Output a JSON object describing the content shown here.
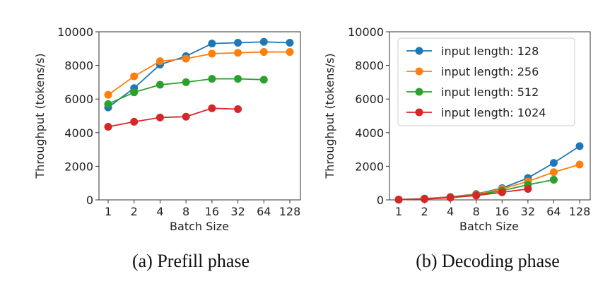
{
  "chart_data": [
    {
      "type": "line",
      "title": "",
      "caption": "(a) Prefill phase",
      "xlabel": "Batch Size",
      "ylabel": "Throughput (tokens/s)",
      "x_scale": "log2",
      "categories": [
        "1",
        "2",
        "4",
        "8",
        "16",
        "32",
        "64",
        "128"
      ],
      "ylim": [
        0,
        10000
      ],
      "yticks": [
        "0",
        "2000",
        "4000",
        "6000",
        "8000",
        "10000"
      ],
      "series": [
        {
          "name": "input length: 128",
          "color": "#1f77b4",
          "values": [
            5500,
            6650,
            8050,
            8550,
            9300,
            9350,
            9400,
            9350
          ]
        },
        {
          "name": "input length: 256",
          "color": "#ff7f0e",
          "values": [
            6250,
            7350,
            8250,
            8400,
            8700,
            8750,
            8800,
            8800
          ]
        },
        {
          "name": "input length: 512",
          "color": "#2ca02c",
          "values": [
            5700,
            6400,
            6850,
            7000,
            7200,
            7200,
            7150,
            null
          ]
        },
        {
          "name": "input length: 1024",
          "color": "#d62728",
          "values": [
            4350,
            4650,
            4900,
            4950,
            5450,
            5400,
            null,
            null
          ]
        }
      ]
    },
    {
      "type": "line",
      "title": "",
      "caption": "(b) Decoding phase",
      "xlabel": "Batch Size",
      "ylabel": "Throughput (tokens/s)",
      "x_scale": "log2",
      "categories": [
        "1",
        "2",
        "4",
        "8",
        "16",
        "32",
        "64",
        "128"
      ],
      "ylim": [
        0,
        10000
      ],
      "yticks": [
        "0",
        "2000",
        "4000",
        "6000",
        "8000",
        "10000"
      ],
      "legend_position": "top-left",
      "series": [
        {
          "name": "input length: 128",
          "color": "#1f77b4",
          "values": [
            20,
            80,
            180,
            350,
            700,
            1300,
            2200,
            3200
          ]
        },
        {
          "name": "input length: 256",
          "color": "#ff7f0e",
          "values": [
            20,
            70,
            170,
            330,
            650,
            1100,
            1650,
            2100
          ]
        },
        {
          "name": "input length: 512",
          "color": "#2ca02c",
          "values": [
            15,
            60,
            150,
            300,
            550,
            900,
            1200,
            null
          ]
        },
        {
          "name": "input length: 1024",
          "color": "#d62728",
          "values": [
            10,
            50,
            130,
            260,
            450,
            650,
            null,
            null
          ]
        }
      ]
    }
  ]
}
